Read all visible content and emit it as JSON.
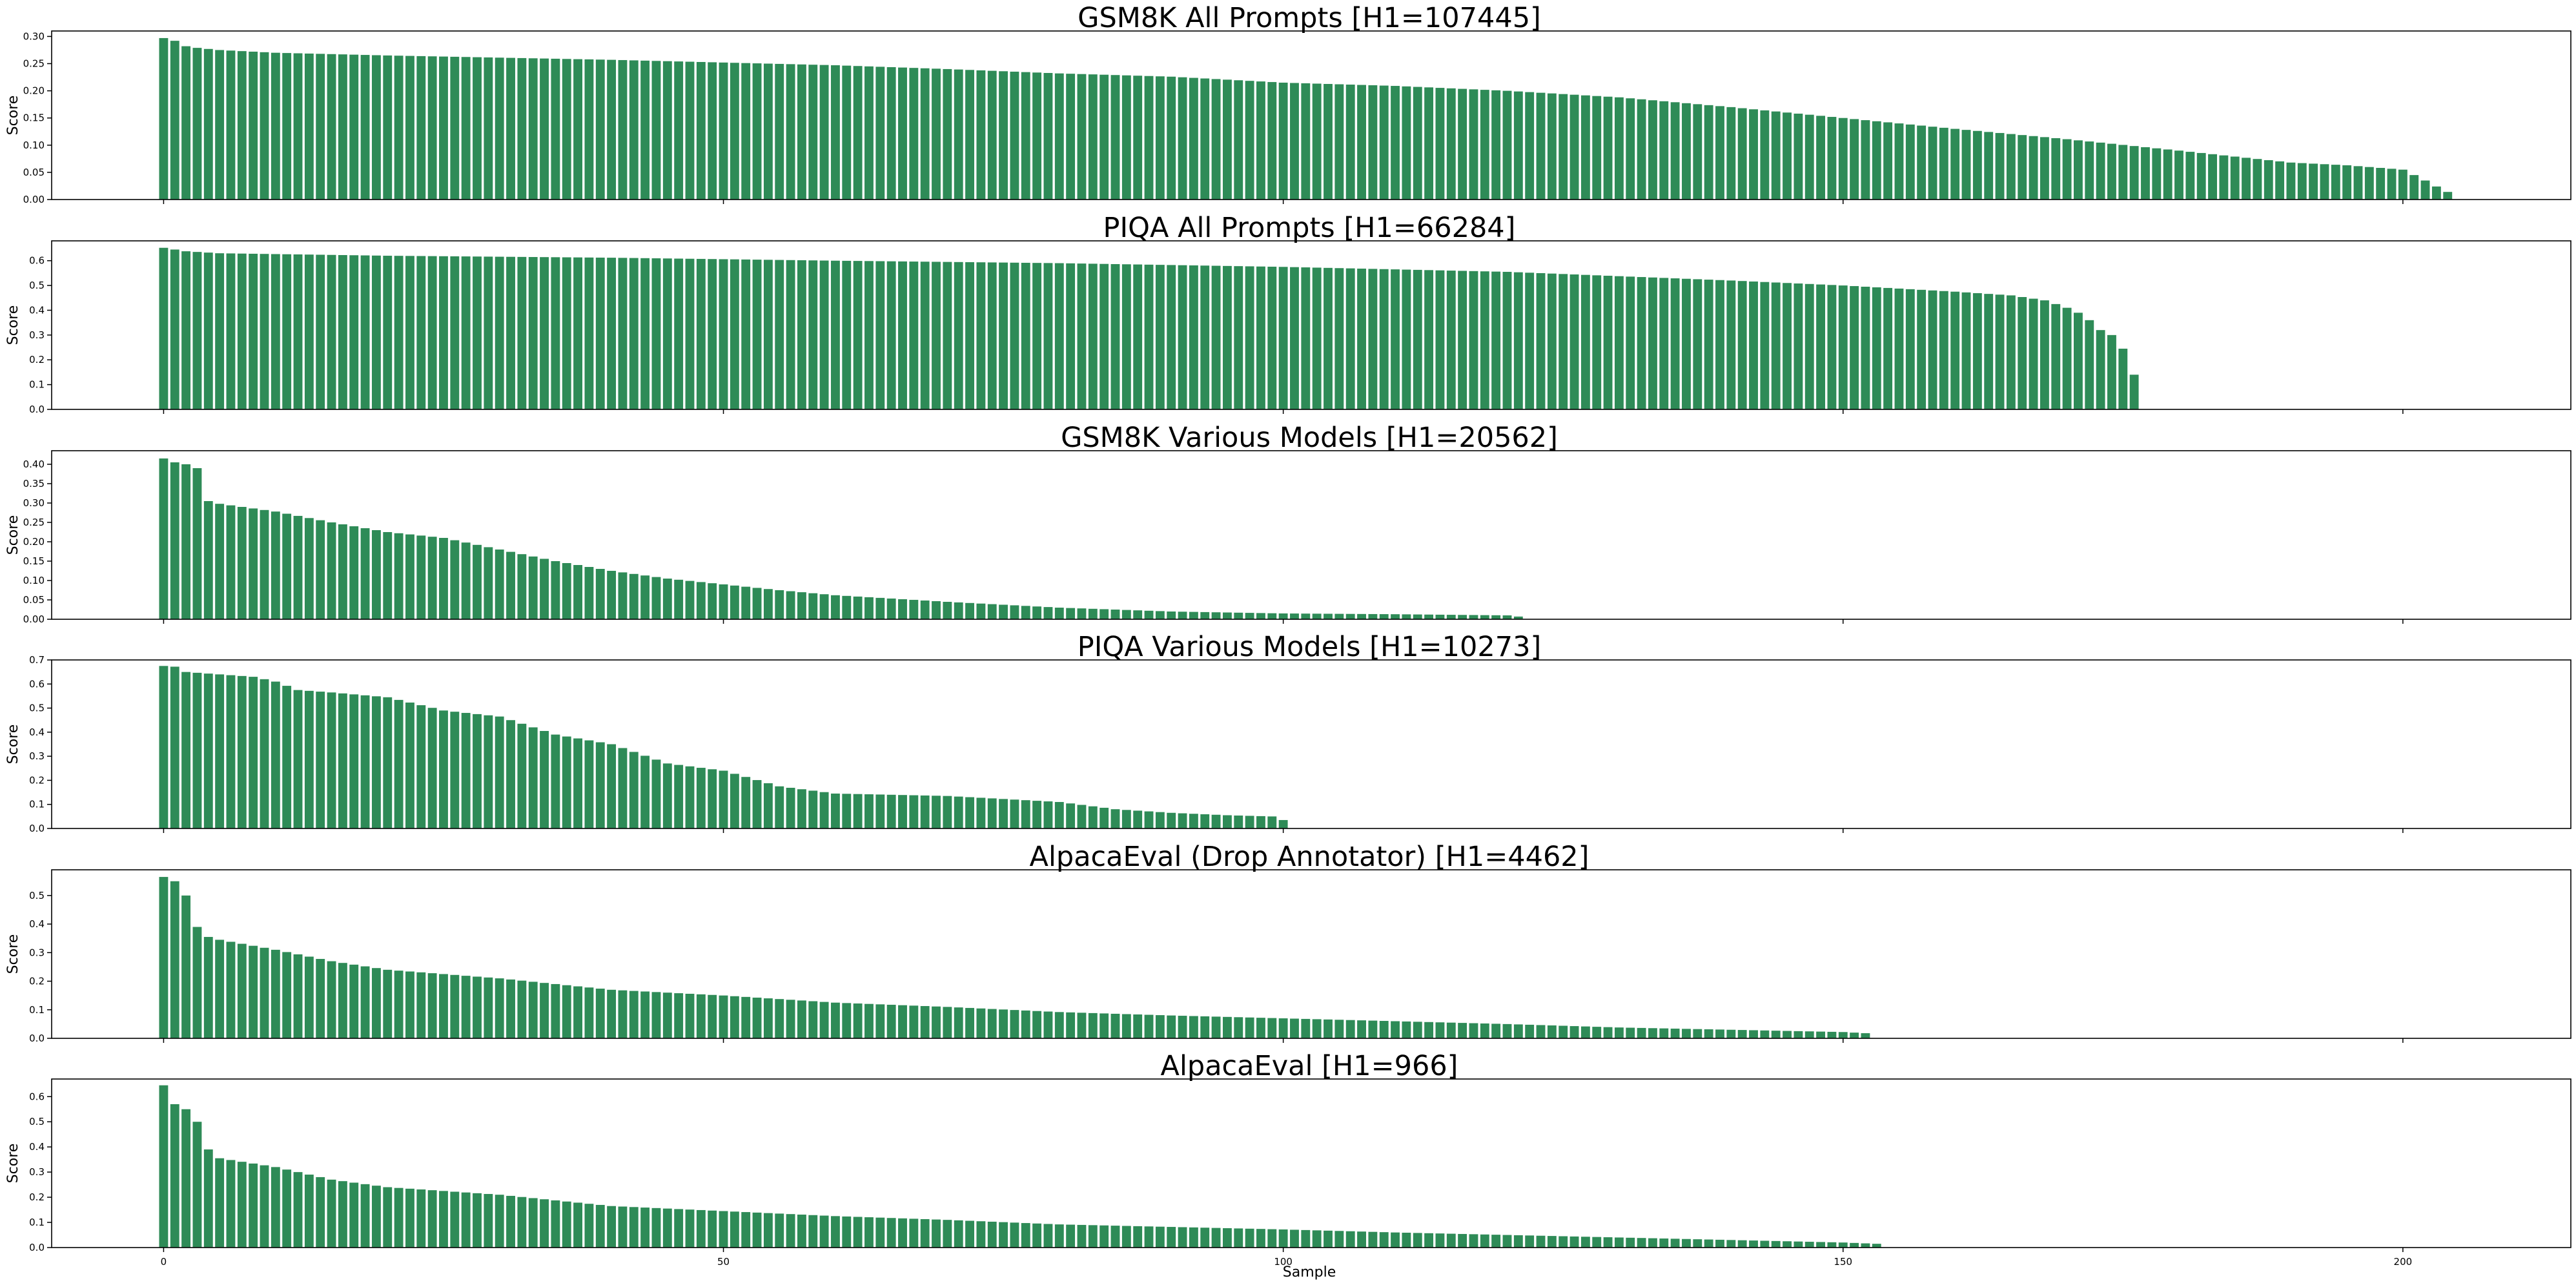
{
  "figure": {
    "xlabel": "Sample",
    "xticks": [
      0,
      50,
      100,
      150,
      200
    ],
    "xlim": [
      -10,
      215
    ],
    "bar_color": "#2e8b57"
  },
  "chart_data": [
    {
      "type": "bar",
      "title": "GSM8K All Prompts [H1=107445]",
      "ylabel": "Score",
      "ylim": [
        0,
        0.31
      ],
      "yticks": [
        "0.00",
        "0.05",
        "0.10",
        "0.15",
        "0.20",
        "0.25",
        "0.30"
      ],
      "yticks_values": [
        0,
        0.05,
        0.1,
        0.15,
        0.2,
        0.25,
        0.3
      ],
      "curve": {
        "n": 205,
        "knots": [
          [
            0,
            0.297
          ],
          [
            1,
            0.292
          ],
          [
            2,
            0.282
          ],
          [
            3,
            0.279
          ],
          [
            5,
            0.275
          ],
          [
            10,
            0.27
          ],
          [
            20,
            0.265
          ],
          [
            40,
            0.257
          ],
          [
            60,
            0.247
          ],
          [
            70,
            0.24
          ],
          [
            80,
            0.232
          ],
          [
            90,
            0.226
          ],
          [
            100,
            0.215
          ],
          [
            110,
            0.209
          ],
          [
            120,
            0.2
          ],
          [
            130,
            0.188
          ],
          [
            140,
            0.17
          ],
          [
            150,
            0.15
          ],
          [
            160,
            0.13
          ],
          [
            170,
            0.111
          ],
          [
            180,
            0.09
          ],
          [
            190,
            0.068
          ],
          [
            195,
            0.063
          ],
          [
            200,
            0.055
          ],
          [
            201,
            0.045
          ],
          [
            202,
            0.035
          ],
          [
            203,
            0.024
          ],
          [
            204,
            0.014
          ]
        ]
      }
    },
    {
      "type": "bar",
      "title": "PIQA All Prompts [H1=66284]",
      "ylabel": "Score",
      "ylim": [
        0,
        0.68
      ],
      "yticks": [
        "0.0",
        "0.1",
        "0.2",
        "0.3",
        "0.4",
        "0.5",
        "0.6"
      ],
      "yticks_values": [
        0,
        0.1,
        0.2,
        0.3,
        0.4,
        0.5,
        0.6
      ],
      "curve": {
        "n": 177,
        "knots": [
          [
            0,
            0.652
          ],
          [
            1,
            0.645
          ],
          [
            2,
            0.638
          ],
          [
            5,
            0.63
          ],
          [
            20,
            0.62
          ],
          [
            40,
            0.612
          ],
          [
            60,
            0.6
          ],
          [
            80,
            0.59
          ],
          [
            100,
            0.575
          ],
          [
            120,
            0.555
          ],
          [
            140,
            0.52
          ],
          [
            150,
            0.5
          ],
          [
            160,
            0.475
          ],
          [
            165,
            0.46
          ],
          [
            168,
            0.44
          ],
          [
            170,
            0.41
          ],
          [
            171,
            0.39
          ],
          [
            172,
            0.36
          ],
          [
            173,
            0.32
          ],
          [
            174,
            0.3
          ],
          [
            175,
            0.245
          ],
          [
            176,
            0.14
          ]
        ]
      }
    },
    {
      "type": "bar",
      "title": "GSM8K Various Models [H1=20562]",
      "ylabel": "Score",
      "ylim": [
        0,
        0.435
      ],
      "yticks": [
        "0.00",
        "0.05",
        "0.10",
        "0.15",
        "0.20",
        "0.25",
        "0.30",
        "0.35",
        "0.40"
      ],
      "yticks_values": [
        0,
        0.05,
        0.1,
        0.15,
        0.2,
        0.25,
        0.3,
        0.35,
        0.4
      ],
      "curve": {
        "n": 122,
        "knots": [
          [
            0,
            0.415
          ],
          [
            1,
            0.405
          ],
          [
            2,
            0.4
          ],
          [
            3,
            0.39
          ],
          [
            4,
            0.305
          ],
          [
            5,
            0.298
          ],
          [
            10,
            0.278
          ],
          [
            15,
            0.25
          ],
          [
            20,
            0.225
          ],
          [
            25,
            0.21
          ],
          [
            30,
            0.18
          ],
          [
            35,
            0.15
          ],
          [
            40,
            0.125
          ],
          [
            45,
            0.105
          ],
          [
            50,
            0.09
          ],
          [
            55,
            0.075
          ],
          [
            60,
            0.062
          ],
          [
            70,
            0.045
          ],
          [
            80,
            0.03
          ],
          [
            90,
            0.02
          ],
          [
            100,
            0.015
          ],
          [
            110,
            0.013
          ],
          [
            120,
            0.01
          ],
          [
            121,
            0.007
          ]
        ]
      }
    },
    {
      "type": "bar",
      "title": "PIQA Various Models [H1=10273]",
      "ylabel": "Score",
      "ylim": [
        0,
        0.7
      ],
      "yticks": [
        "0.0",
        "0.1",
        "0.2",
        "0.3",
        "0.4",
        "0.5",
        "0.6",
        "0.7"
      ],
      "yticks_values": [
        0,
        0.1,
        0.2,
        0.3,
        0.4,
        0.5,
        0.6,
        0.7
      ],
      "curve": {
        "n": 101,
        "knots": [
          [
            0,
            0.675
          ],
          [
            1,
            0.672
          ],
          [
            2,
            0.65
          ],
          [
            5,
            0.64
          ],
          [
            8,
            0.63
          ],
          [
            10,
            0.61
          ],
          [
            12,
            0.575
          ],
          [
            15,
            0.565
          ],
          [
            20,
            0.545
          ],
          [
            25,
            0.49
          ],
          [
            30,
            0.465
          ],
          [
            35,
            0.39
          ],
          [
            40,
            0.35
          ],
          [
            45,
            0.27
          ],
          [
            50,
            0.24
          ],
          [
            55,
            0.175
          ],
          [
            60,
            0.145
          ],
          [
            70,
            0.135
          ],
          [
            80,
            0.11
          ],
          [
            85,
            0.08
          ],
          [
            90,
            0.065
          ],
          [
            95,
            0.055
          ],
          [
            99,
            0.05
          ],
          [
            100,
            0.035
          ]
        ]
      }
    },
    {
      "type": "bar",
      "title": "AlpacaEval (Drop Annotator) [H1=4462]",
      "ylabel": "Score",
      "ylim": [
        0,
        0.59
      ],
      "yticks": [
        "0.0",
        "0.1",
        "0.2",
        "0.3",
        "0.4",
        "0.5"
      ],
      "yticks_values": [
        0,
        0.1,
        0.2,
        0.3,
        0.4,
        0.5
      ],
      "curve": {
        "n": 153,
        "knots": [
          [
            0,
            0.565
          ],
          [
            1,
            0.55
          ],
          [
            2,
            0.5
          ],
          [
            3,
            0.39
          ],
          [
            4,
            0.355
          ],
          [
            5,
            0.345
          ],
          [
            10,
            0.31
          ],
          [
            15,
            0.27
          ],
          [
            20,
            0.24
          ],
          [
            30,
            0.21
          ],
          [
            40,
            0.17
          ],
          [
            50,
            0.15
          ],
          [
            60,
            0.125
          ],
          [
            70,
            0.11
          ],
          [
            80,
            0.092
          ],
          [
            90,
            0.08
          ],
          [
            100,
            0.07
          ],
          [
            110,
            0.06
          ],
          [
            120,
            0.05
          ],
          [
            130,
            0.038
          ],
          [
            140,
            0.03
          ],
          [
            150,
            0.022
          ],
          [
            152,
            0.018
          ]
        ]
      }
    },
    {
      "type": "bar",
      "title": "AlpacaEval [H1=966]",
      "ylabel": "Score",
      "ylim": [
        0,
        0.67
      ],
      "yticks": [
        "0.0",
        "0.1",
        "0.2",
        "0.3",
        "0.4",
        "0.5",
        "0.6"
      ],
      "yticks_values": [
        0,
        0.1,
        0.2,
        0.3,
        0.4,
        0.5,
        0.6
      ],
      "curve": {
        "n": 154,
        "knots": [
          [
            0,
            0.645
          ],
          [
            1,
            0.57
          ],
          [
            2,
            0.55
          ],
          [
            3,
            0.5
          ],
          [
            4,
            0.39
          ],
          [
            5,
            0.355
          ],
          [
            10,
            0.32
          ],
          [
            15,
            0.27
          ],
          [
            20,
            0.24
          ],
          [
            30,
            0.21
          ],
          [
            40,
            0.165
          ],
          [
            50,
            0.145
          ],
          [
            60,
            0.125
          ],
          [
            70,
            0.11
          ],
          [
            80,
            0.092
          ],
          [
            90,
            0.082
          ],
          [
            100,
            0.072
          ],
          [
            110,
            0.06
          ],
          [
            120,
            0.05
          ],
          [
            130,
            0.04
          ],
          [
            140,
            0.03
          ],
          [
            150,
            0.02
          ],
          [
            153,
            0.015
          ]
        ]
      }
    }
  ]
}
